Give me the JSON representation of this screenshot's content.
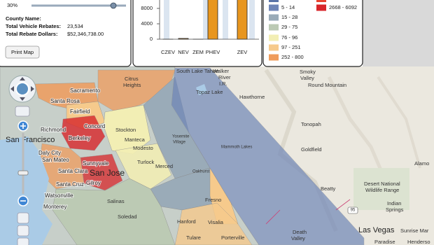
{
  "info": {
    "opacity": "30%",
    "county_name": "County Name:",
    "vehicle_rebates_label": "Total Vehicle Rebates:",
    "vehicle_rebates": "23,534",
    "rebate_dollars_label": "Total Rebate Dollars:",
    "rebate_dollars": "$52,346,738.00",
    "print_button": "Print Map"
  },
  "chart_data": {
    "type": "bar",
    "categories": [
      "CZEV",
      "NEV",
      "ZEM",
      "PHEV",
      "ZEV"
    ],
    "values": [
      0,
      200,
      0,
      11000,
      11000
    ],
    "color": "#e8961e",
    "ylim": [
      0,
      10000
    ],
    "yticks": [
      0,
      4000,
      8000
    ]
  },
  "legend": {
    "items": [
      {
        "label": "5 - 14",
        "color": "#6f86b7"
      },
      {
        "label": "15 - 28",
        "color": "#9aabb8"
      },
      {
        "label": "29 - 75",
        "color": "#bccab4"
      },
      {
        "label": "76 - 96",
        "color": "#f2eeb4"
      },
      {
        "label": "97 - 251",
        "color": "#f6ca8c"
      },
      {
        "label": "252 - 800",
        "color": "#ef9c5c"
      },
      {
        "label": "2668 - 6092",
        "color": "#d8262a"
      }
    ]
  },
  "map": {
    "labels": [
      "South Lake Tahoe",
      "Smoky",
      "Valley",
      "Round Mountain",
      "Walker",
      "River",
      "I.R.",
      "Topaz Lake",
      "Hawthorne",
      "Tonopah",
      "Goldfield",
      "Alamo",
      "Desert National",
      "Wildlife Range",
      "Beatty",
      "Indian",
      "Springs",
      "Las Vegas",
      "Sunrise Mar",
      "Paradise",
      "Henderso",
      "Death",
      "Valley",
      "Richmond",
      "San Francisco",
      "Berkeley",
      "Concord",
      "Stockton",
      "Manteca",
      "Modesto",
      "Daly City",
      "San Mateo",
      "Sunnyvale",
      "San Jose",
      "Santa Clara",
      "Turlock",
      "Gilroy",
      "Santa Cruz",
      "Watsonville",
      "Merced",
      "Monterey",
      "Salinas",
      "Fresno",
      "Soledad",
      "Hanford",
      "Visalia",
      "Tulare",
      "Porterville",
      "Yosemite",
      "Village",
      "Mammoth Lakes",
      "Oakhurst",
      "Santa Rosa",
      "Sacramento",
      "Fairfield",
      "Citrus",
      "Heights",
      "95"
    ]
  }
}
